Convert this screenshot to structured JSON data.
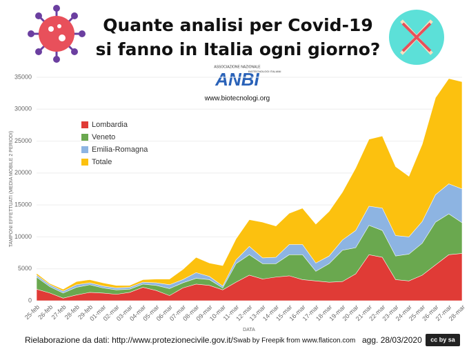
{
  "chart_data": {
    "type": "area",
    "title": [
      "Quante analisi per Covid-19",
      "si fanno in Italia ogni giorno?"
    ],
    "logo": {
      "top": "ASSOCIAZIONE NAZIONALE",
      "mark": "ANBI",
      "bottom": "BIOTECNOLOGI ITALIANI",
      "website": "www.biotecnologi.org"
    },
    "y_label": "TAMPONI EFFETTUATI (MEDIA MOBILE 2 PERIODI)",
    "x_label": "DATA",
    "footer": [
      "Rielaborazione da dati: http://www.protezionecivile.gov.it/",
      "Swab by Freepik from www.flaticon.com",
      "agg. 28/03/2020"
    ],
    "license": "cc by sa",
    "categories": [
      "25-feb",
      "26-feb",
      "27-feb",
      "28-feb",
      "29-feb",
      "01-mar",
      "02-mar",
      "03-mar",
      "04-mar",
      "05-mar",
      "06-mar",
      "07-mar",
      "08-mar",
      "09-mar",
      "10-mar",
      "11-mar",
      "12-mar",
      "13-mar",
      "14-mar",
      "15-mar",
      "16-mar",
      "17-mar",
      "18-mar",
      "19-mar",
      "20-mar",
      "21-mar",
      "22-mar",
      "23-mar",
      "24-mar",
      "25-mar",
      "26-mar",
      "27-mar",
      "28-mar"
    ],
    "series": [
      {
        "name": "Lombardia",
        "color": "#e03b36",
        "values": [
          1800,
          1200,
          400,
          900,
          1300,
          1200,
          1000,
          1300,
          2100,
          1600,
          800,
          2000,
          2600,
          2400,
          1700,
          2900,
          4000,
          3400,
          3700,
          3900,
          3300,
          3100,
          2900,
          3000,
          4200,
          7200,
          6800,
          3300,
          3100,
          4000,
          5600,
          7200,
          7400
        ]
      },
      {
        "name": "Veneto",
        "color": "#6aa84f",
        "values": [
          3700,
          2200,
          1200,
          2100,
          2500,
          2000,
          1700,
          1800,
          2600,
          2400,
          1900,
          2800,
          3500,
          3300,
          2000,
          5800,
          7200,
          5800,
          5800,
          7200,
          7200,
          4600,
          5800,
          7900,
          8300,
          11800,
          11000,
          7000,
          7300,
          9000,
          12300,
          13600,
          12200
        ]
      },
      {
        "name": "Emilia-Romagna",
        "color": "#8db4e2",
        "values": [
          4000,
          2500,
          1500,
          2500,
          2800,
          2300,
          2000,
          2100,
          2900,
          2800,
          2500,
          3300,
          4400,
          3800,
          2300,
          6400,
          8500,
          6700,
          6800,
          8800,
          8800,
          5900,
          7000,
          9500,
          11000,
          14800,
          14500,
          10200,
          10000,
          12400,
          16600,
          18300,
          17500
        ]
      },
      {
        "name": "Totale",
        "color": "#fcc10f",
        "values": [
          4300,
          2700,
          1800,
          3000,
          3300,
          2800,
          2400,
          2400,
          3300,
          3400,
          3400,
          4900,
          6800,
          5900,
          5500,
          9700,
          12700,
          12300,
          11700,
          13700,
          14500,
          12000,
          14000,
          17000,
          20800,
          25300,
          25800,
          21000,
          19500,
          24500,
          31800,
          34800,
          34300
        ]
      }
    ],
    "ylim": [
      0,
      35000
    ],
    "yticks": [
      0,
      5000,
      10000,
      15000,
      20000,
      25000,
      30000,
      35000
    ],
    "grid": true,
    "legend": "upper-left"
  }
}
